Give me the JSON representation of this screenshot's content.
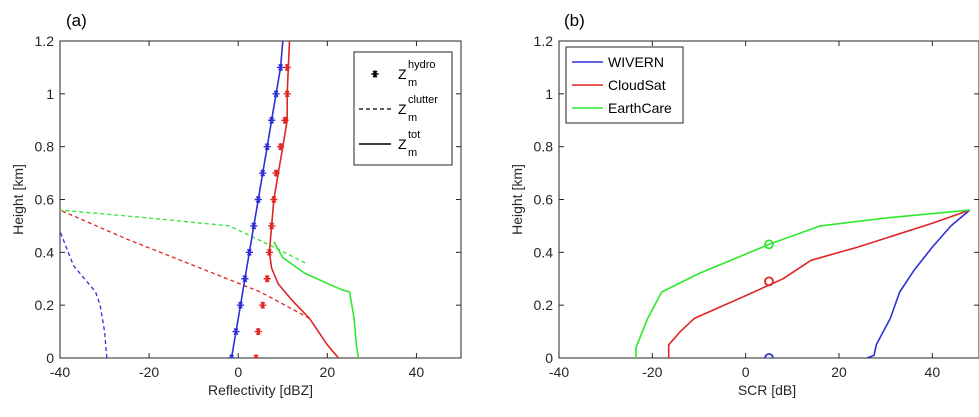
{
  "chart_data": [
    {
      "type": "line",
      "panel_label": "(a)",
      "xlabel": "Reflectivity [dBZ]",
      "ylabel": "Height [km]",
      "xlim": [
        -40,
        50
      ],
      "ylim": [
        0,
        1.2
      ],
      "xticks": [
        -40,
        -20,
        0,
        20,
        40
      ],
      "yticks": [
        0,
        0.2,
        0.4,
        0.6,
        0.8,
        1,
        1.2
      ],
      "xticklabels": [
        "-40",
        "-20",
        "0",
        "20",
        "40"
      ],
      "yticklabels": [
        "0",
        "0.2",
        "0.4",
        "0.6",
        "0.8",
        "1",
        "1.2"
      ],
      "grid": false,
      "legend_position": "top-right",
      "legend": [
        {
          "symbol": "star",
          "base": "Z",
          "sub": "m",
          "sup": "hydro"
        },
        {
          "symbol": "dashed",
          "base": "Z",
          "sub": "m",
          "sup": "clutter"
        },
        {
          "symbol": "solid",
          "base": "Z",
          "sub": "m",
          "sup": "tot"
        }
      ],
      "series": [
        {
          "kind": "hydro",
          "color": "#2f2fd8",
          "x": [
            -1.5,
            -0.5,
            0.5,
            1.5,
            2.5,
            3.5,
            4.5,
            5.5,
            6.5,
            7.5,
            8.5,
            9.5
          ],
          "y": [
            0,
            0.1,
            0.2,
            0.3,
            0.4,
            0.5,
            0.6,
            0.7,
            0.8,
            0.9,
            1.0,
            1.1
          ]
        },
        {
          "kind": "hydro",
          "color": "#e02525",
          "x": [
            4,
            4.5,
            5.5,
            6.5,
            7,
            7.5,
            8,
            8.5,
            9.5,
            10.5,
            11,
            11
          ],
          "y": [
            0,
            0.1,
            0.2,
            0.3,
            0.4,
            0.5,
            0.6,
            0.7,
            0.8,
            0.9,
            1.0,
            1.1
          ]
        },
        {
          "kind": "clutter",
          "color": "#2f2fd8",
          "x": [
            -29.5,
            -30,
            -31,
            -32,
            -37,
            -40
          ],
          "y": [
            0,
            0.1,
            0.2,
            0.25,
            0.35,
            0.48
          ]
        },
        {
          "kind": "clutter",
          "color": "#e02525",
          "x": [
            16,
            5,
            -10,
            -25,
            -40
          ],
          "y": [
            0.15,
            0.25,
            0.35,
            0.45,
            0.56
          ]
        },
        {
          "kind": "clutter",
          "color": "#2ee82e",
          "x": [
            15,
            8,
            -2,
            -20,
            -40
          ],
          "y": [
            0.36,
            0.42,
            0.5,
            0.53,
            0.56
          ]
        },
        {
          "kind": "total",
          "color": "#2f2fd8",
          "x": [
            -1.5,
            -0.5,
            0.5,
            1.5,
            2.5,
            3.5,
            4.5,
            5.5,
            6.5,
            7.5,
            8.5,
            9.5,
            10
          ],
          "y": [
            0,
            0.1,
            0.2,
            0.3,
            0.4,
            0.5,
            0.6,
            0.7,
            0.8,
            0.9,
            1.0,
            1.1,
            1.2
          ]
        },
        {
          "kind": "total",
          "color": "#e02525",
          "x": [
            22.5,
            20,
            16,
            12,
            9,
            7.5,
            7,
            7.5,
            8,
            9,
            10,
            11,
            11,
            11.5
          ],
          "y": [
            0,
            0.05,
            0.15,
            0.22,
            0.28,
            0.34,
            0.4,
            0.5,
            0.6,
            0.7,
            0.8,
            0.9,
            1.0,
            1.2
          ]
        },
        {
          "kind": "total",
          "color": "#2ee82e",
          "x": [
            27,
            26.5,
            26,
            25,
            23,
            15,
            10,
            8
          ],
          "y": [
            0,
            0.05,
            0.15,
            0.25,
            0.26,
            0.32,
            0.38,
            0.44
          ]
        }
      ]
    },
    {
      "type": "line",
      "panel_label": "(b)",
      "xlabel": "SCR [dB]",
      "ylabel": "Height [km]",
      "xlim": [
        -40,
        50
      ],
      "ylim": [
        0,
        1.2
      ],
      "xticks": [
        -40,
        -20,
        0,
        20,
        40
      ],
      "yticks": [
        0,
        0.2,
        0.4,
        0.6,
        0.8,
        1,
        1.2
      ],
      "xticklabels": [
        "-40",
        "-20",
        "0",
        "20",
        "40"
      ],
      "yticklabels": [
        "0",
        "0.2",
        "0.4",
        "0.6",
        "0.8",
        "1",
        "1.2"
      ],
      "grid": false,
      "legend_position": "top-left",
      "series": [
        {
          "name": "WIVERN",
          "color": "#2f2fd8",
          "x": [
            26,
            27.5,
            28,
            31,
            33,
            36,
            40,
            44,
            48
          ],
          "y": [
            0,
            0.01,
            0.05,
            0.15,
            0.25,
            0.33,
            0.42,
            0.5,
            0.56
          ]
        },
        {
          "name": "CloudSat",
          "color": "#e02525",
          "x": [
            -16.5,
            -16.5,
            -14,
            -11,
            -2,
            8,
            14,
            24,
            40,
            48
          ],
          "y": [
            0,
            0.05,
            0.1,
            0.15,
            0.22,
            0.3,
            0.37,
            0.42,
            0.51,
            0.56
          ]
        },
        {
          "name": "EarthCare",
          "color": "#2ee82e",
          "x": [
            -23.5,
            -23.5,
            -21,
            -18,
            -10,
            5,
            16,
            30,
            48
          ],
          "y": [
            0,
            0.04,
            0.15,
            0.25,
            0.32,
            0.43,
            0.5,
            0.53,
            0.56
          ]
        }
      ],
      "markers": [
        {
          "x": 5,
          "y": 0.0,
          "color": "#2f2fd8"
        },
        {
          "x": 5,
          "y": 0.29,
          "color": "#e02525"
        },
        {
          "x": 5,
          "y": 0.43,
          "color": "#2ee82e"
        }
      ]
    }
  ]
}
